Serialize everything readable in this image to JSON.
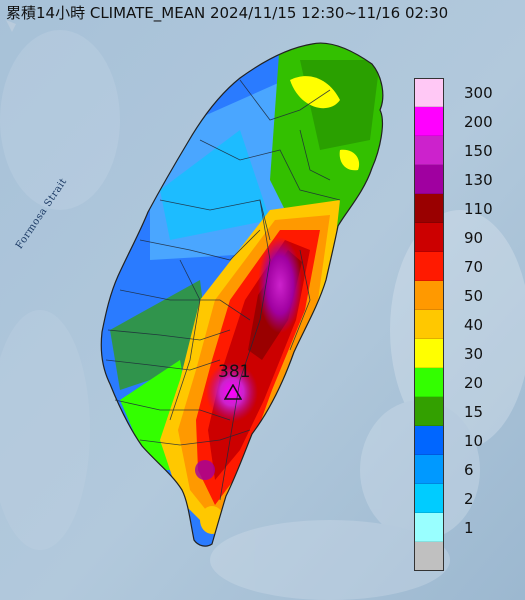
{
  "title": "累積14小時 CLIMATE_MEAN 2024/11/15 12:30~11/16 02:30",
  "sea_label": "Formosa Strait",
  "peak": {
    "value": "381",
    "marker": "triangle-marker"
  },
  "legend": {
    "bins": [
      {
        "label": "300",
        "color": "#ffc8f5"
      },
      {
        "label": "200",
        "color": "#ff00ff"
      },
      {
        "label": "150",
        "color": "#cc22cc"
      },
      {
        "label": "130",
        "color": "#a000a0"
      },
      {
        "label": "110",
        "color": "#9a0000"
      },
      {
        "label": "90",
        "color": "#cc0000"
      },
      {
        "label": "70",
        "color": "#ff1a00"
      },
      {
        "label": "50",
        "color": "#ff9900"
      },
      {
        "label": "40",
        "color": "#ffc800"
      },
      {
        "label": "30",
        "color": "#ffff00"
      },
      {
        "label": "20",
        "color": "#33ff00"
      },
      {
        "label": "15",
        "color": "#33a000"
      },
      {
        "label": "10",
        "color": "#0066ff"
      },
      {
        "label": "6",
        "color": "#0099ff"
      },
      {
        "label": "2",
        "color": "#00ccff"
      },
      {
        "label": "1",
        "color": "#99ffff"
      },
      {
        "label": "",
        "color": "#c0c0c0"
      }
    ]
  }
}
